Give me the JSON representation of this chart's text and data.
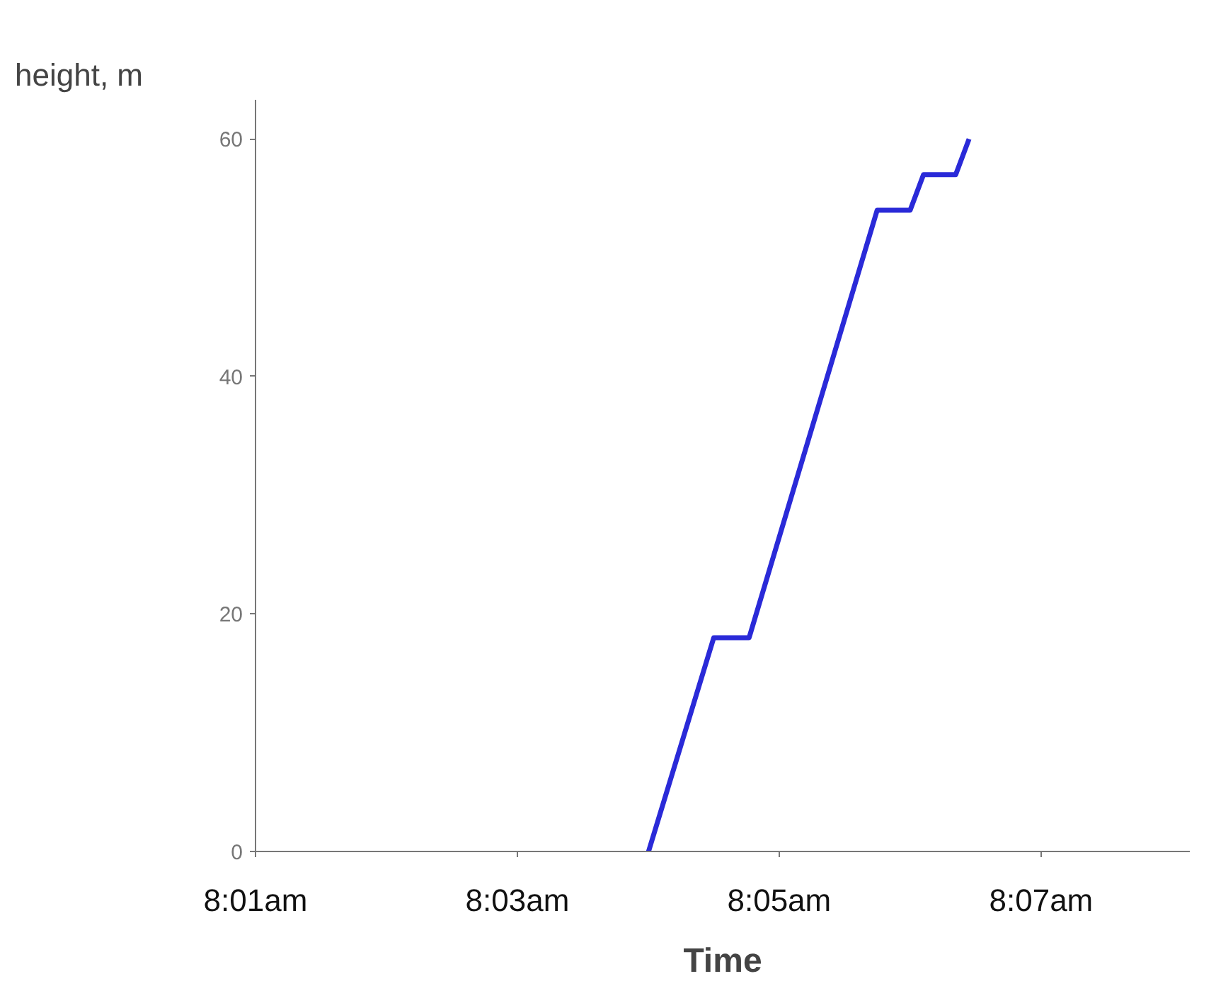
{
  "chart_data": {
    "type": "line",
    "xlabel": "Time",
    "ylabel": "height, m",
    "x": [
      8.0667,
      8.075,
      8.0795,
      8.0958,
      8.1,
      8.1017,
      8.1058,
      8.1075
    ],
    "series": [
      {
        "color": "#2a2ad8",
        "values": [
          0,
          18,
          18,
          54,
          54,
          57,
          57,
          60
        ]
      }
    ],
    "xlim": [
      8.01667,
      8.1356
    ],
    "ylim": [
      0,
      63.3
    ],
    "xticks": [
      {
        "value": 8.01667,
        "label": "8:01am"
      },
      {
        "value": 8.05,
        "label": "8:03am"
      },
      {
        "value": 8.08333,
        "label": "8:05am"
      },
      {
        "value": 8.11667,
        "label": "8:07am"
      }
    ],
    "yticks": [
      0,
      20,
      40,
      60
    ],
    "grid": false,
    "marker": "none",
    "line_style": "solid"
  }
}
